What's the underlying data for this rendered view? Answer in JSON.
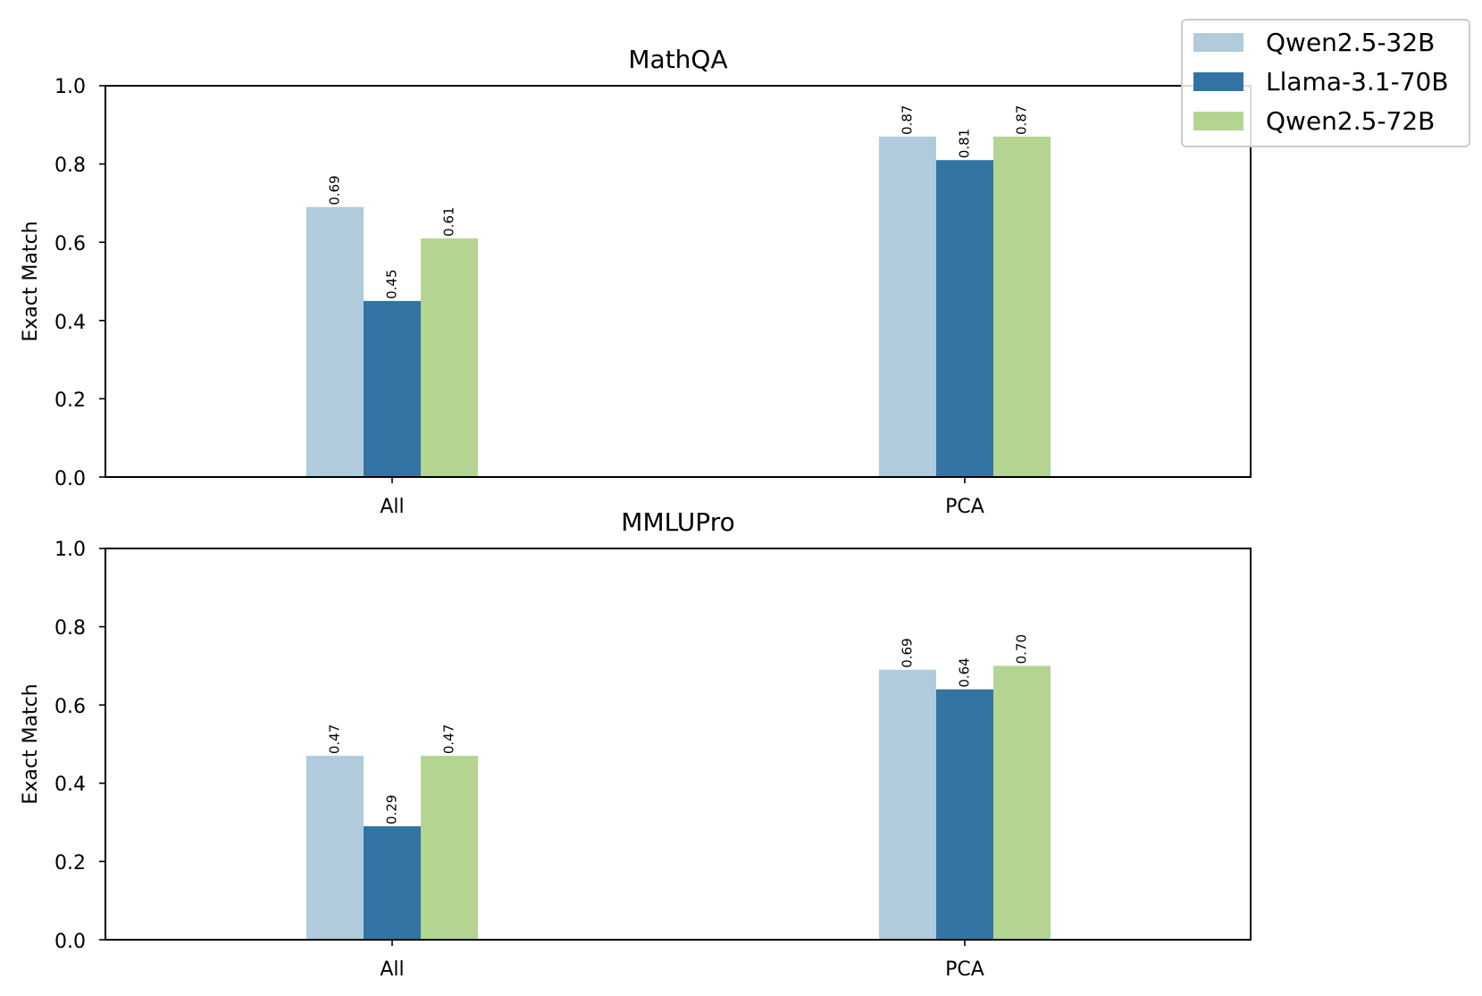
{
  "chart_data": [
    {
      "type": "bar",
      "title": "MathQA",
      "xlabel": "",
      "ylabel": "Exact Match",
      "ylim": [
        0,
        1.0
      ],
      "yticks": [
        "0.0",
        "0.2",
        "0.4",
        "0.6",
        "0.8",
        "1.0"
      ],
      "categories": [
        "All",
        "PCA"
      ],
      "series": [
        {
          "name": "Qwen2.5-32B",
          "values": [
            0.69,
            0.87
          ],
          "labels": [
            "0.69",
            "0.87"
          ]
        },
        {
          "name": "Llama-3.1-70B",
          "values": [
            0.45,
            0.81
          ],
          "labels": [
            "0.45",
            "0.81"
          ]
        },
        {
          "name": "Qwen2.5-72B",
          "values": [
            0.61,
            0.87
          ],
          "labels": [
            "0.61",
            "0.87"
          ]
        }
      ]
    },
    {
      "type": "bar",
      "title": "MMLUPro",
      "xlabel": "",
      "ylabel": "Exact Match",
      "ylim": [
        0,
        1.0
      ],
      "yticks": [
        "0.0",
        "0.2",
        "0.4",
        "0.6",
        "0.8",
        "1.0"
      ],
      "categories": [
        "All",
        "PCA"
      ],
      "series": [
        {
          "name": "Qwen2.5-32B",
          "values": [
            0.47,
            0.69
          ],
          "labels": [
            "0.47",
            "0.69"
          ]
        },
        {
          "name": "Llama-3.1-70B",
          "values": [
            0.29,
            0.64
          ],
          "labels": [
            "0.29",
            "0.64"
          ]
        },
        {
          "name": "Qwen2.5-72B",
          "values": [
            0.47,
            0.7
          ],
          "labels": [
            "0.47",
            "0.70"
          ]
        }
      ]
    }
  ],
  "legend": {
    "placement": "top-right",
    "items": [
      {
        "name": "Qwen2.5-32B",
        "color": "#afcbdc"
      },
      {
        "name": "Llama-3.1-70B",
        "color": "#3274a3"
      },
      {
        "name": "Qwen2.5-72B",
        "color": "#b4d592"
      }
    ]
  },
  "colors": [
    "#afcbdc",
    "#3274a3",
    "#b4d592"
  ]
}
